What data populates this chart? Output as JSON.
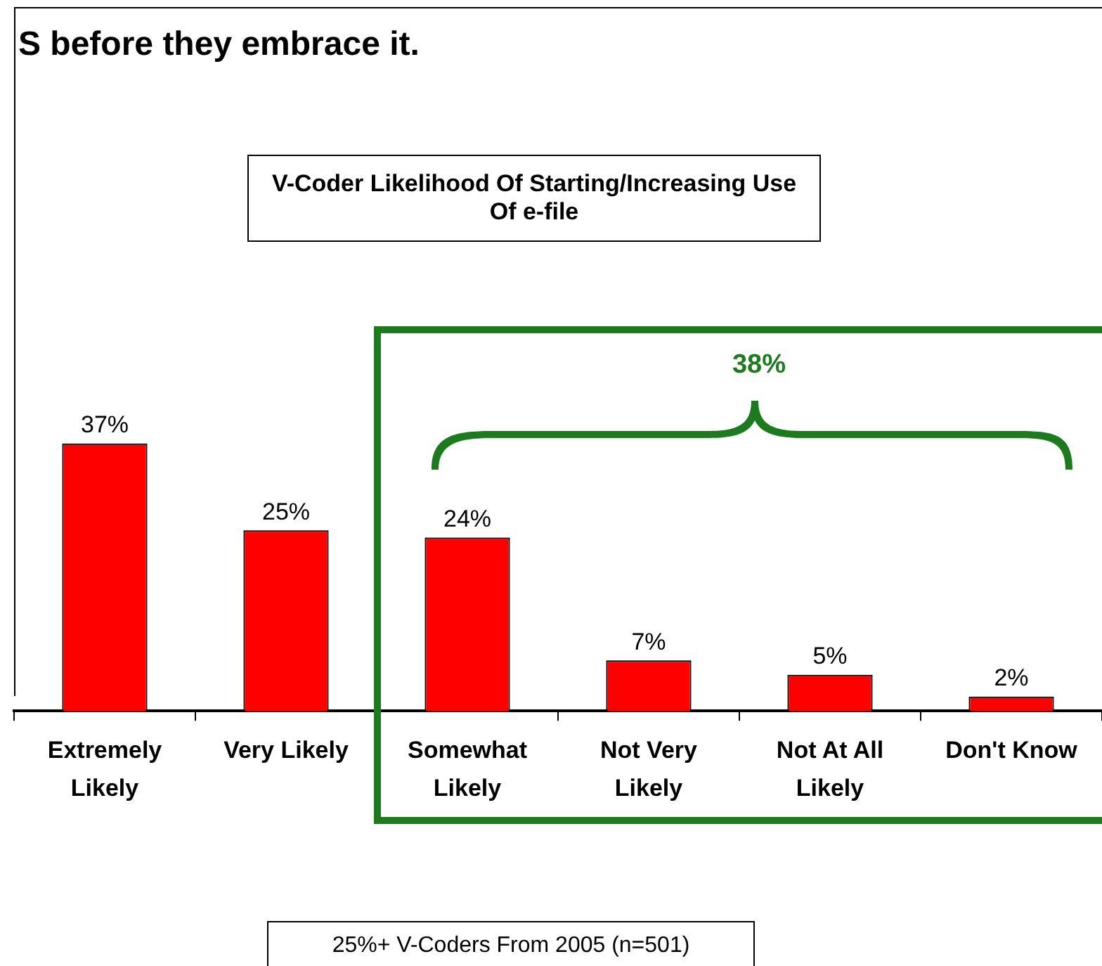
{
  "chart_data": {
    "type": "bar",
    "title": "V-Coder Likelihood Of Starting/Increasing Use Of e-file",
    "categories": [
      "Extremely Likely",
      "Very Likely",
      "Somewhat Likely",
      "Not Very Likely",
      "Not At All Likely",
      "Don't Know"
    ],
    "values": [
      37,
      25,
      24,
      7,
      5,
      2
    ],
    "value_labels": [
      "37%",
      "25%",
      "24%",
      "7%",
      "5%",
      "2%"
    ],
    "color": "#ff0000",
    "tick_labels": "x",
    "grid": false,
    "legend": false,
    "annotations": [
      "S before they embrace it.",
      "38%",
      "25%+ V-Coders From 2005 (n=501)"
    ]
  }
}
